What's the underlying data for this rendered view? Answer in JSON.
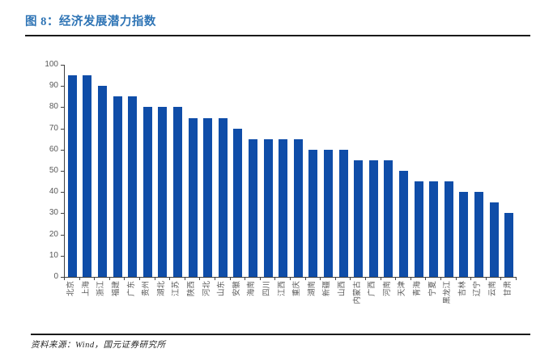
{
  "figure": {
    "title": "图 8：经济发展潜力指数",
    "source": "资料来源：Wind，国元证券研究所"
  },
  "colors": {
    "title_blue": "#2E74B5",
    "bar_blue": "#0F4DA8",
    "rule_dark": "#1a1a1a",
    "axis_gray": "#404040",
    "tick_label_gray": "#595959"
  },
  "chart_data": {
    "type": "bar",
    "title": "经济发展潜力指数",
    "categories": [
      "北京",
      "上海",
      "浙江",
      "福建",
      "广东",
      "贵州",
      "湖北",
      "江苏",
      "陕西",
      "河北",
      "山东",
      "安徽",
      "海南",
      "四川",
      "江西",
      "重庆",
      "湖南",
      "新疆",
      "山西",
      "内蒙古",
      "广西",
      "河南",
      "天津",
      "青海",
      "宁夏",
      "黑龙江",
      "吉林",
      "辽宁",
      "云南",
      "甘肃"
    ],
    "values": [
      95,
      95,
      90,
      85,
      85,
      80,
      80,
      80,
      75,
      75,
      75,
      70,
      65,
      65,
      65,
      65,
      60,
      60,
      60,
      55,
      55,
      55,
      50,
      45,
      45,
      45,
      40,
      40,
      35,
      30
    ],
    "xlabel": "",
    "ylabel": "",
    "ylim": [
      0,
      100
    ],
    "ytick_interval": 10,
    "grid": false,
    "legend": "none",
    "bar_color": "#0F4DA8"
  }
}
